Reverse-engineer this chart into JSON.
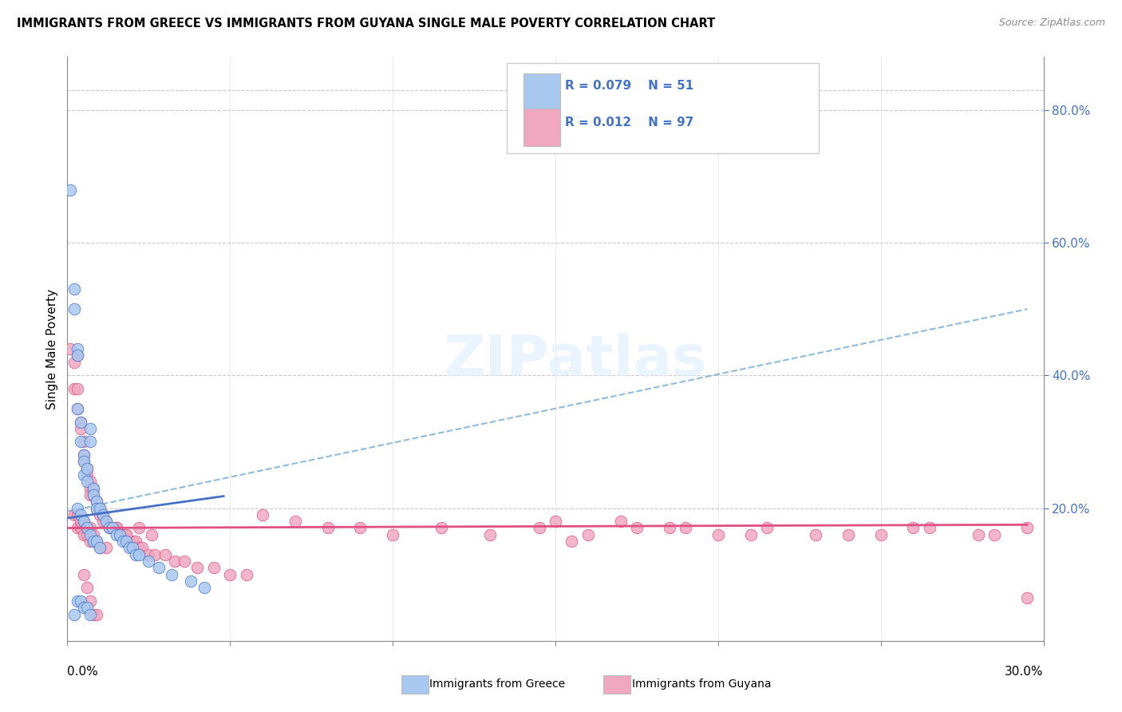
{
  "title": "IMMIGRANTS FROM GREECE VS IMMIGRANTS FROM GUYANA SINGLE MALE POVERTY CORRELATION CHART",
  "source": "Source: ZipAtlas.com",
  "ylabel": "Single Male Poverty",
  "right_yticks": [
    "80.0%",
    "60.0%",
    "40.0%",
    "20.0%"
  ],
  "right_ytick_vals": [
    0.8,
    0.6,
    0.4,
    0.2
  ],
  "xlim": [
    0.0,
    0.3
  ],
  "ylim": [
    0.0,
    0.88
  ],
  "legend_label1": "Immigrants from Greece",
  "legend_label2": "Immigrants from Guyana",
  "color_greece": "#a8c8f0",
  "color_guyana": "#f0a8c0",
  "trendline_greece_color": "#4472c4",
  "trendline_guyana_color": "#e05080",
  "trendline_dashed_color": "#7bafd4",
  "greece_x": [
    0.001,
    0.002,
    0.002,
    0.003,
    0.003,
    0.003,
    0.004,
    0.004,
    0.005,
    0.005,
    0.005,
    0.006,
    0.006,
    0.007,
    0.007,
    0.008,
    0.008,
    0.009,
    0.009,
    0.01,
    0.011,
    0.012,
    0.013,
    0.014,
    0.015,
    0.016,
    0.017,
    0.018,
    0.019,
    0.02,
    0.021,
    0.022,
    0.003,
    0.004,
    0.005,
    0.006,
    0.007,
    0.008,
    0.009,
    0.01,
    0.025,
    0.028,
    0.032,
    0.038,
    0.042,
    0.003,
    0.004,
    0.005,
    0.006,
    0.007,
    0.002
  ],
  "greece_y": [
    0.68,
    0.53,
    0.5,
    0.44,
    0.43,
    0.35,
    0.33,
    0.3,
    0.28,
    0.27,
    0.25,
    0.26,
    0.24,
    0.32,
    0.3,
    0.23,
    0.22,
    0.21,
    0.2,
    0.2,
    0.19,
    0.18,
    0.17,
    0.17,
    0.16,
    0.16,
    0.15,
    0.15,
    0.14,
    0.14,
    0.13,
    0.13,
    0.2,
    0.19,
    0.18,
    0.17,
    0.16,
    0.15,
    0.15,
    0.14,
    0.12,
    0.11,
    0.1,
    0.09,
    0.08,
    0.06,
    0.06,
    0.05,
    0.05,
    0.04,
    0.04
  ],
  "guyana_x": [
    0.001,
    0.002,
    0.002,
    0.003,
    0.003,
    0.003,
    0.004,
    0.004,
    0.005,
    0.005,
    0.005,
    0.006,
    0.006,
    0.007,
    0.007,
    0.007,
    0.008,
    0.008,
    0.009,
    0.009,
    0.01,
    0.01,
    0.011,
    0.011,
    0.012,
    0.013,
    0.014,
    0.015,
    0.016,
    0.017,
    0.018,
    0.019,
    0.02,
    0.021,
    0.022,
    0.023,
    0.025,
    0.027,
    0.03,
    0.033,
    0.036,
    0.04,
    0.045,
    0.05,
    0.055,
    0.003,
    0.004,
    0.005,
    0.006,
    0.007,
    0.008,
    0.009,
    0.01,
    0.012,
    0.015,
    0.018,
    0.022,
    0.026,
    0.002,
    0.003,
    0.004,
    0.005,
    0.006,
    0.007,
    0.008,
    0.06,
    0.07,
    0.08,
    0.09,
    0.1,
    0.115,
    0.13,
    0.145,
    0.16,
    0.175,
    0.155,
    0.19,
    0.2,
    0.215,
    0.23,
    0.25,
    0.265,
    0.28,
    0.295,
    0.15,
    0.17,
    0.185,
    0.21,
    0.24,
    0.26,
    0.285,
    0.295,
    0.005,
    0.006,
    0.007,
    0.008,
    0.009
  ],
  "guyana_y": [
    0.44,
    0.42,
    0.38,
    0.43,
    0.38,
    0.35,
    0.33,
    0.32,
    0.3,
    0.28,
    0.27,
    0.26,
    0.25,
    0.24,
    0.23,
    0.22,
    0.23,
    0.22,
    0.21,
    0.2,
    0.2,
    0.19,
    0.19,
    0.18,
    0.18,
    0.17,
    0.17,
    0.17,
    0.16,
    0.16,
    0.16,
    0.15,
    0.15,
    0.15,
    0.14,
    0.14,
    0.13,
    0.13,
    0.13,
    0.12,
    0.12,
    0.11,
    0.11,
    0.1,
    0.1,
    0.17,
    0.17,
    0.16,
    0.16,
    0.15,
    0.15,
    0.15,
    0.14,
    0.14,
    0.17,
    0.16,
    0.17,
    0.16,
    0.19,
    0.19,
    0.18,
    0.18,
    0.17,
    0.17,
    0.16,
    0.19,
    0.18,
    0.17,
    0.17,
    0.16,
    0.17,
    0.16,
    0.17,
    0.16,
    0.17,
    0.15,
    0.17,
    0.16,
    0.17,
    0.16,
    0.16,
    0.17,
    0.16,
    0.065,
    0.18,
    0.18,
    0.17,
    0.16,
    0.16,
    0.17,
    0.16,
    0.17,
    0.1,
    0.08,
    0.06,
    0.04,
    0.04
  ],
  "greece_trend_x": [
    0.0,
    0.048
  ],
  "greece_trend_y": [
    0.185,
    0.218
  ],
  "guyana_trend_x": [
    0.0,
    0.295
  ],
  "guyana_trend_y": [
    0.17,
    0.175
  ],
  "dashed_trend_x": [
    0.0,
    0.295
  ],
  "dashed_trend_y": [
    0.195,
    0.5
  ]
}
